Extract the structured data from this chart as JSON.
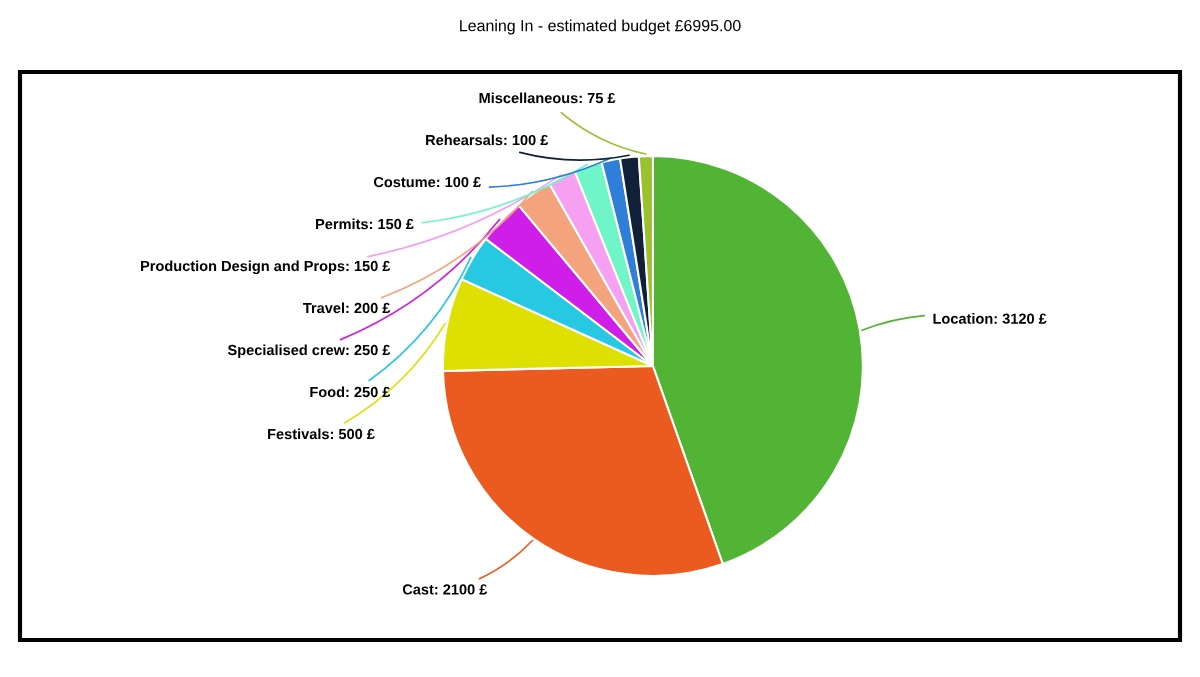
{
  "chart_data": {
    "type": "pie",
    "title": "Leaning In - estimated budget £6995.00",
    "categories": [
      "Location",
      "Cast",
      "Festivals",
      "Food",
      "Specialised crew",
      "Travel",
      "Production Design and Props",
      "Permits",
      "Costume",
      "Rehearsals",
      "Miscellaneous"
    ],
    "values": [
      3120,
      2100,
      500,
      250,
      250,
      200,
      150,
      150,
      100,
      100,
      75
    ],
    "value_labels": [
      "3120 £",
      "2100 £",
      "500 £",
      "250 £",
      "250 £",
      "200 £",
      "150 £",
      "150 £",
      "100 £",
      "100 £",
      "75 £"
    ],
    "colors": [
      "#52b435",
      "#eb5a1e",
      "#dde000",
      "#27c8e2",
      "#cf1ee8",
      "#f4a47c",
      "#f5a0f0",
      "#6ff5c8",
      "#2f7fd8",
      "#0f2038",
      "#9ac12e"
    ]
  }
}
